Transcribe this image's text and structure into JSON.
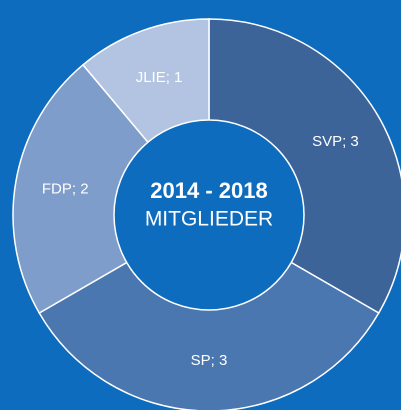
{
  "chart_data": {
    "type": "donut",
    "title": "2014 - 2018",
    "subtitle": "MITGLIEDER",
    "values": [
      3,
      3,
      2,
      1
    ],
    "value_labels": [
      "SVP; 3",
      "SP; 3",
      "FDP; 2",
      "JLIE; 1"
    ],
    "colors": [
      "#3c6499",
      "#4a77b0",
      "#7e9dca",
      "#b2c4e1"
    ],
    "background": "#0d6cbd"
  }
}
